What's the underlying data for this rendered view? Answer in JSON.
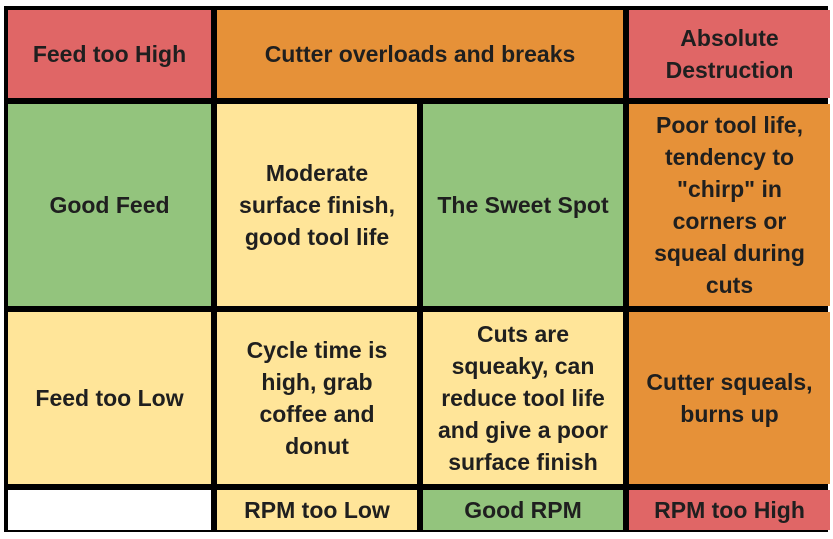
{
  "colors": {
    "red": "#e06666",
    "orange": "#e69138",
    "green": "#93c47d",
    "yellow": "#ffe599",
    "blank": "#ffffff"
  },
  "cells": [
    {
      "text": "Feed too High",
      "color": "red"
    },
    {
      "text": "Cutter overloads and breaks",
      "color": "orange"
    },
    {
      "text": "Absolute\nDestruction",
      "color": "red"
    },
    {
      "text": "Good Feed",
      "color": "green"
    },
    {
      "text": "Moderate\nsurface finish,\ngood tool life",
      "color": "yellow"
    },
    {
      "text": "The Sweet Spot",
      "color": "green"
    },
    {
      "text": "Poor tool life,\ntendency to\n\"chirp\" in\ncorners or\nsqueal during\ncuts",
      "color": "orange"
    },
    {
      "text": "Feed too Low",
      "color": "yellow"
    },
    {
      "text": "Cycle time is\nhigh, grab\ncoffee and\ndonut",
      "color": "yellow"
    },
    {
      "text": "Cuts are\nsqueaky, can\nreduce tool life\nand give a poor\nsurface finish",
      "color": "yellow"
    },
    {
      "text": "Cutter squeals,\nburns up",
      "color": "orange"
    },
    {
      "text": "",
      "color": "blank"
    },
    {
      "text": "RPM too Low",
      "color": "yellow"
    },
    {
      "text": "Good RPM",
      "color": "green"
    },
    {
      "text": "RPM too High",
      "color": "red"
    }
  ]
}
